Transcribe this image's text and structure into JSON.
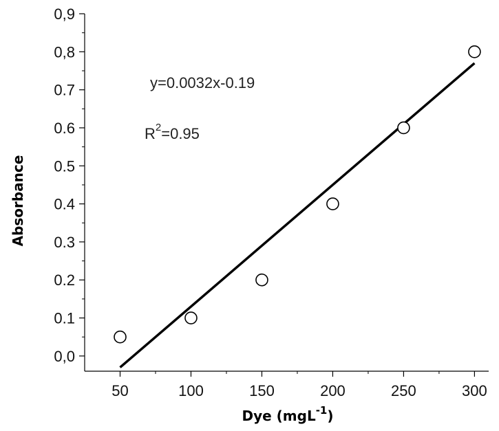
{
  "chart_data": {
    "type": "scatter",
    "xlabel": "Dye (mgL",
    "xlabel_sup": "-1",
    "xlabel_close": ")",
    "ylabel": "Absorbance",
    "xlim": [
      25,
      310
    ],
    "ylim": [
      -0.04,
      0.9
    ],
    "x_ticks": [
      50,
      100,
      150,
      200,
      250,
      300
    ],
    "x_tick_labels": [
      "50",
      "100",
      "150",
      "200",
      "250",
      "300"
    ],
    "y_ticks": [
      0.0,
      0.1,
      0.2,
      0.3,
      0.4,
      0.5,
      0.6,
      0.7,
      0.8,
      0.9
    ],
    "y_tick_labels": [
      "0,0",
      "0.1",
      "0.2",
      "0.3",
      "0.4",
      "0.5",
      "0.6",
      "0.7",
      "0,8",
      "0,9"
    ],
    "grid": false,
    "series": [
      {
        "marker": "open-circle",
        "points": [
          {
            "x": 50,
            "y": 0.05
          },
          {
            "x": 100,
            "y": 0.1
          },
          {
            "x": 150,
            "y": 0.2
          },
          {
            "x": 200,
            "y": 0.4
          },
          {
            "x": 250,
            "y": 0.6
          },
          {
            "x": 300,
            "y": 0.8
          }
        ]
      }
    ],
    "fit_line": {
      "slope": 0.0032,
      "intercept": -0.19,
      "x_range": [
        50,
        300
      ]
    },
    "annotations": {
      "equation": "y=0.0032x-0.19",
      "r2_prefix": "R",
      "r2_sup": "2",
      "r2_value": "=0.95"
    }
  }
}
